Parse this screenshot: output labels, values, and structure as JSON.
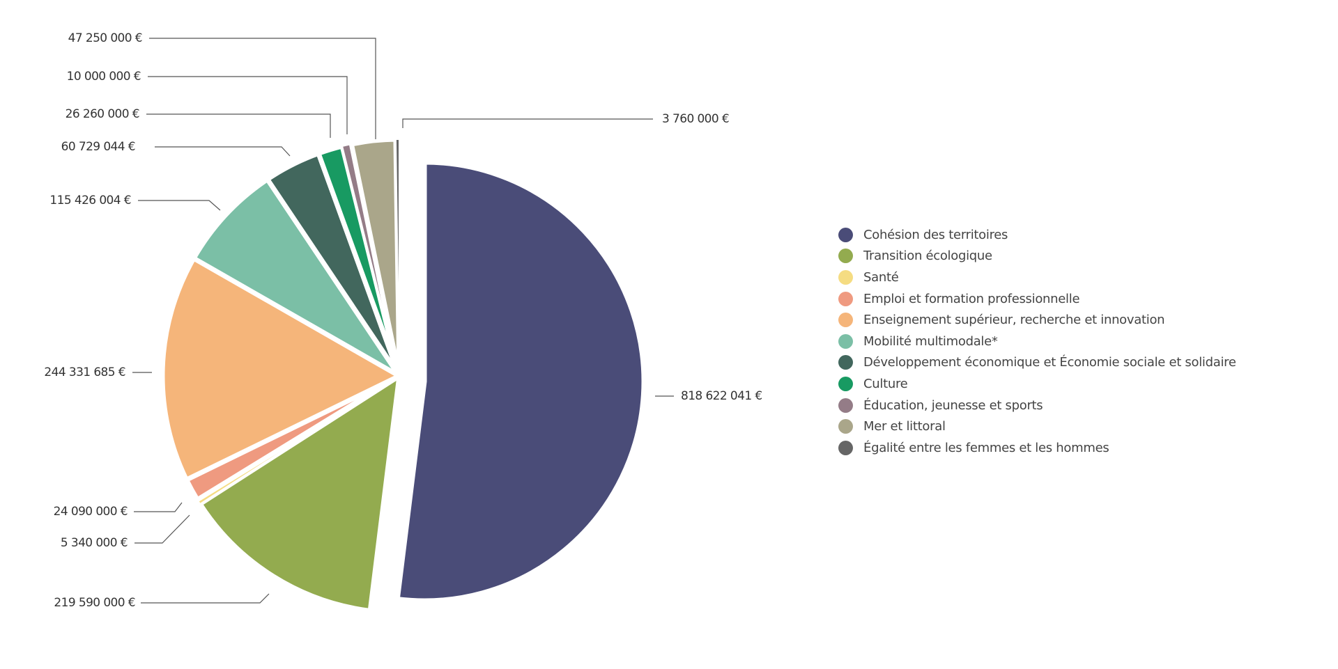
{
  "chart_data": {
    "type": "pie",
    "title": "",
    "legend_position": "right",
    "series": [
      {
        "name": "Cohésion des territoires",
        "value": 818622041,
        "label": "818 622 041 €",
        "color": "#4a4c78",
        "exploded": true
      },
      {
        "name": "Transition écologique",
        "value": 219590000,
        "label": "219 590 000 €",
        "color": "#93ab4f"
      },
      {
        "name": "Santé",
        "value": 5340000,
        "label": "5 340 000 €",
        "color": "#f5dc82"
      },
      {
        "name": "Emploi et formation professionnelle",
        "value": 24090000,
        "label": "24 090 000 €",
        "color": "#ef9a80"
      },
      {
        "name": "Enseignement supérieur, recherche et innovation",
        "value": 244331685,
        "label": "244 331 685 €",
        "color": "#f5b57a"
      },
      {
        "name": "Mobilité multimodale*",
        "value": 115426004,
        "label": "115 426 004 €",
        "color": "#7bbfa6"
      },
      {
        "name": "Développement économique et Économie sociale et solidaire",
        "value": 60729044,
        "label": "60 729 044 €",
        "color": "#42675d"
      },
      {
        "name": "Culture",
        "value": 26260000,
        "label": "26 260 000 €",
        "color": "#189a62"
      },
      {
        "name": "Éducation, jeunesse et sports",
        "value": 10000000,
        "label": "10 000 000 €",
        "color": "#947c87"
      },
      {
        "name": "Mer et littoral",
        "value": 47250000,
        "label": "47 250 000 €",
        "color": "#aaa68a"
      },
      {
        "name": "Égalité entre les femmes et les hommes",
        "value": 3760000,
        "label": "3 760 000 €",
        "color": "#666666"
      }
    ]
  }
}
